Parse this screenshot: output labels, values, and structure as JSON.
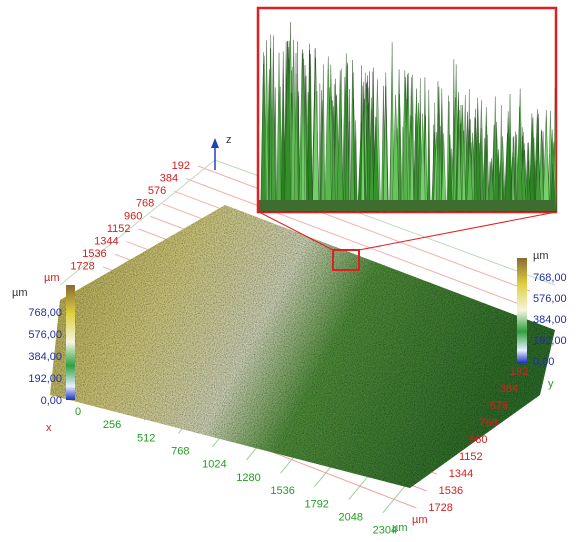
{
  "z_label": "z",
  "x_label": "x",
  "y_label": "y",
  "back_axis": {
    "ticks": [
      192,
      384,
      576,
      768,
      960,
      1152,
      1344,
      1536,
      1728
    ],
    "unit": "µm"
  },
  "x_axis": {
    "ticks": [
      0,
      256,
      512,
      768,
      1024,
      1280,
      1536,
      1792,
      2048,
      2304
    ],
    "unit": "µm"
  },
  "y_axis": {
    "ticks": [
      192,
      384,
      576,
      768,
      960,
      1152,
      1344,
      1536,
      1728
    ],
    "unit": "µm"
  },
  "left_colorbar": {
    "unit": "µm",
    "labels": [
      "768,00",
      "576,00",
      "384,00",
      "192,00",
      "0,00"
    ]
  },
  "right_colorbar": {
    "unit": "µm",
    "labels": [
      "768,00",
      "576,00",
      "384,00",
      "192,00",
      "0,00"
    ]
  }
}
